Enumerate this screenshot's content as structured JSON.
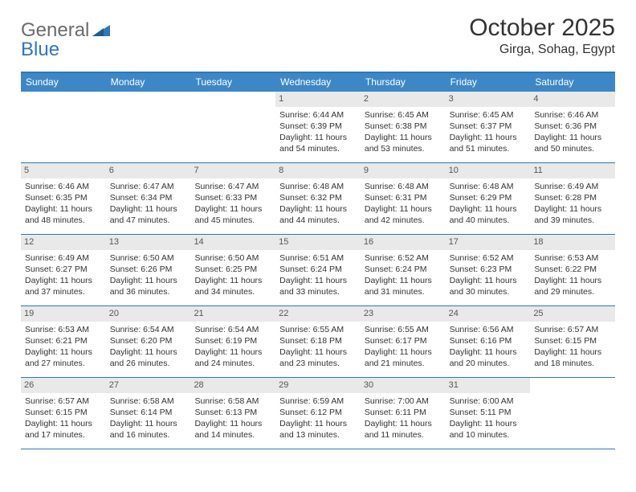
{
  "logo": {
    "word1": "General",
    "word2": "Blue"
  },
  "title": "October 2025",
  "location": "Girga, Sohag, Egypt",
  "colors": {
    "header_bg": "#3d87c7",
    "border": "#2f77bb",
    "daynum_bg": "#e9e9e9",
    "text": "#333333",
    "logo_gray": "#6b6b6b",
    "logo_blue": "#2f77bb"
  },
  "day_headers": [
    "Sunday",
    "Monday",
    "Tuesday",
    "Wednesday",
    "Thursday",
    "Friday",
    "Saturday"
  ],
  "weeks": [
    [
      {
        "empty": true
      },
      {
        "empty": true
      },
      {
        "empty": true
      },
      {
        "num": "1",
        "sunrise": "6:44 AM",
        "sunset": "6:39 PM",
        "daylight": "11 hours and 54 minutes."
      },
      {
        "num": "2",
        "sunrise": "6:45 AM",
        "sunset": "6:38 PM",
        "daylight": "11 hours and 53 minutes."
      },
      {
        "num": "3",
        "sunrise": "6:45 AM",
        "sunset": "6:37 PM",
        "daylight": "11 hours and 51 minutes."
      },
      {
        "num": "4",
        "sunrise": "6:46 AM",
        "sunset": "6:36 PM",
        "daylight": "11 hours and 50 minutes."
      }
    ],
    [
      {
        "num": "5",
        "sunrise": "6:46 AM",
        "sunset": "6:35 PM",
        "daylight": "11 hours and 48 minutes."
      },
      {
        "num": "6",
        "sunrise": "6:47 AM",
        "sunset": "6:34 PM",
        "daylight": "11 hours and 47 minutes."
      },
      {
        "num": "7",
        "sunrise": "6:47 AM",
        "sunset": "6:33 PM",
        "daylight": "11 hours and 45 minutes."
      },
      {
        "num": "8",
        "sunrise": "6:48 AM",
        "sunset": "6:32 PM",
        "daylight": "11 hours and 44 minutes."
      },
      {
        "num": "9",
        "sunrise": "6:48 AM",
        "sunset": "6:31 PM",
        "daylight": "11 hours and 42 minutes."
      },
      {
        "num": "10",
        "sunrise": "6:48 AM",
        "sunset": "6:29 PM",
        "daylight": "11 hours and 40 minutes."
      },
      {
        "num": "11",
        "sunrise": "6:49 AM",
        "sunset": "6:28 PM",
        "daylight": "11 hours and 39 minutes."
      }
    ],
    [
      {
        "num": "12",
        "sunrise": "6:49 AM",
        "sunset": "6:27 PM",
        "daylight": "11 hours and 37 minutes."
      },
      {
        "num": "13",
        "sunrise": "6:50 AM",
        "sunset": "6:26 PM",
        "daylight": "11 hours and 36 minutes."
      },
      {
        "num": "14",
        "sunrise": "6:50 AM",
        "sunset": "6:25 PM",
        "daylight": "11 hours and 34 minutes."
      },
      {
        "num": "15",
        "sunrise": "6:51 AM",
        "sunset": "6:24 PM",
        "daylight": "11 hours and 33 minutes."
      },
      {
        "num": "16",
        "sunrise": "6:52 AM",
        "sunset": "6:24 PM",
        "daylight": "11 hours and 31 minutes."
      },
      {
        "num": "17",
        "sunrise": "6:52 AM",
        "sunset": "6:23 PM",
        "daylight": "11 hours and 30 minutes."
      },
      {
        "num": "18",
        "sunrise": "6:53 AM",
        "sunset": "6:22 PM",
        "daylight": "11 hours and 29 minutes."
      }
    ],
    [
      {
        "num": "19",
        "sunrise": "6:53 AM",
        "sunset": "6:21 PM",
        "daylight": "11 hours and 27 minutes."
      },
      {
        "num": "20",
        "sunrise": "6:54 AM",
        "sunset": "6:20 PM",
        "daylight": "11 hours and 26 minutes."
      },
      {
        "num": "21",
        "sunrise": "6:54 AM",
        "sunset": "6:19 PM",
        "daylight": "11 hours and 24 minutes."
      },
      {
        "num": "22",
        "sunrise": "6:55 AM",
        "sunset": "6:18 PM",
        "daylight": "11 hours and 23 minutes."
      },
      {
        "num": "23",
        "sunrise": "6:55 AM",
        "sunset": "6:17 PM",
        "daylight": "11 hours and 21 minutes."
      },
      {
        "num": "24",
        "sunrise": "6:56 AM",
        "sunset": "6:16 PM",
        "daylight": "11 hours and 20 minutes."
      },
      {
        "num": "25",
        "sunrise": "6:57 AM",
        "sunset": "6:15 PM",
        "daylight": "11 hours and 18 minutes."
      }
    ],
    [
      {
        "num": "26",
        "sunrise": "6:57 AM",
        "sunset": "6:15 PM",
        "daylight": "11 hours and 17 minutes."
      },
      {
        "num": "27",
        "sunrise": "6:58 AM",
        "sunset": "6:14 PM",
        "daylight": "11 hours and 16 minutes."
      },
      {
        "num": "28",
        "sunrise": "6:58 AM",
        "sunset": "6:13 PM",
        "daylight": "11 hours and 14 minutes."
      },
      {
        "num": "29",
        "sunrise": "6:59 AM",
        "sunset": "6:12 PM",
        "daylight": "11 hours and 13 minutes."
      },
      {
        "num": "30",
        "sunrise": "7:00 AM",
        "sunset": "6:11 PM",
        "daylight": "11 hours and 11 minutes."
      },
      {
        "num": "31",
        "sunrise": "6:00 AM",
        "sunset": "5:11 PM",
        "daylight": "11 hours and 10 minutes."
      },
      {
        "empty": true
      }
    ]
  ],
  "labels": {
    "sunrise": "Sunrise:",
    "sunset": "Sunset:",
    "daylight": "Daylight:"
  }
}
